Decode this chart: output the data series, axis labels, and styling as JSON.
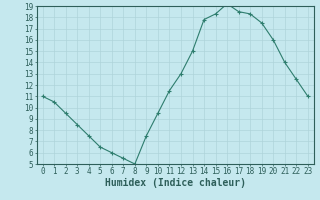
{
  "xlabel": "Humidex (Indice chaleur)",
  "x": [
    0,
    1,
    2,
    3,
    4,
    5,
    6,
    7,
    8,
    9,
    10,
    11,
    12,
    13,
    14,
    15,
    16,
    17,
    18,
    19,
    20,
    21,
    22,
    23
  ],
  "y": [
    11,
    10.5,
    9.5,
    8.5,
    7.5,
    6.5,
    6.0,
    5.5,
    5.0,
    7.5,
    9.5,
    11.5,
    13.0,
    15.0,
    17.8,
    18.3,
    19.2,
    18.5,
    18.3,
    17.5,
    16.0,
    14.0,
    12.5,
    11.0
  ],
  "line_color": "#2e7d6e",
  "marker": "+",
  "bg_color": "#c5e8ee",
  "grid_color": "#afd4da",
  "ylim": [
    5,
    19
  ],
  "xlim": [
    -0.5,
    23.5
  ],
  "yticks": [
    5,
    6,
    7,
    8,
    9,
    10,
    11,
    12,
    13,
    14,
    15,
    16,
    17,
    18,
    19
  ],
  "xticks": [
    0,
    1,
    2,
    3,
    4,
    5,
    6,
    7,
    8,
    9,
    10,
    11,
    12,
    13,
    14,
    15,
    16,
    17,
    18,
    19,
    20,
    21,
    22,
    23
  ],
  "tick_color": "#2e5f5a",
  "xlabel_fontsize": 7,
  "tick_fontsize": 5.5,
  "axis_color": "#2e5f5a"
}
